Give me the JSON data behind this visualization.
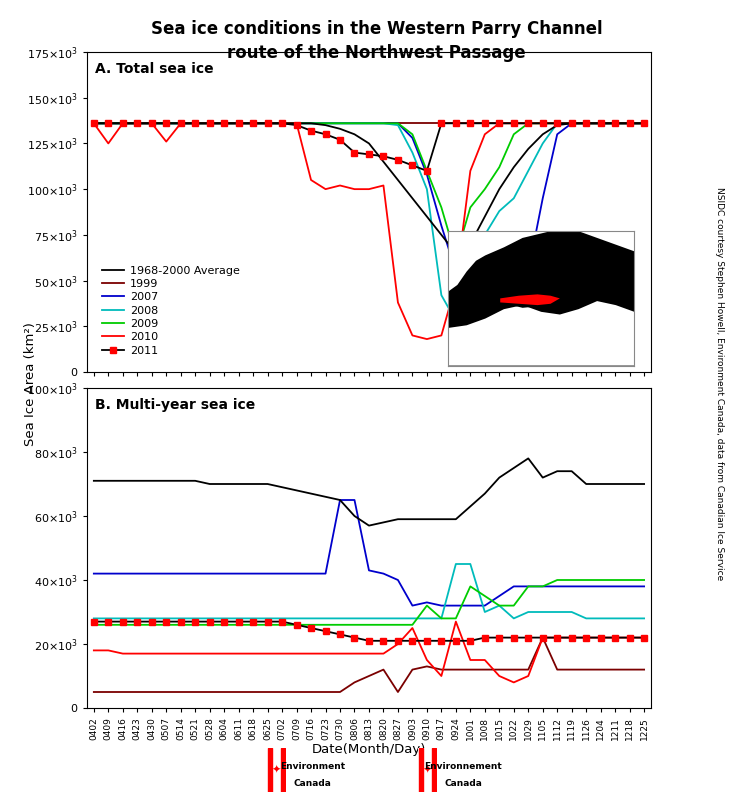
{
  "title": "Sea ice conditions in the Western Parry Channel\nroute of the Northwest Passage",
  "ylabel": "Sea Ice Area (km²)",
  "xlabel": "Date(Month/Day)",
  "subplot_a_label": "A. Total sea ice",
  "subplot_b_label": "B. Multi-year sea ice",
  "x_ticks": [
    "0402",
    "0409",
    "0416",
    "0423",
    "0430",
    "0507",
    "0514",
    "0521",
    "0528",
    "0604",
    "0611",
    "0618",
    "0625",
    "0702",
    "0709",
    "0716",
    "0723",
    "0730",
    "0806",
    "0813",
    "0820",
    "0827",
    "0903",
    "0910",
    "0917",
    "0924",
    "1001",
    "1008",
    "1015",
    "1022",
    "1029",
    "1105",
    "1112",
    "1119",
    "1126",
    "1204",
    "1211",
    "1218",
    "1225"
  ],
  "colors": {
    "avg": "#000000",
    "y1999": "#7B0000",
    "y2007": "#0000CC",
    "y2008": "#00BBBB",
    "y2009": "#00CC00",
    "y2010": "#FF0000",
    "y2011_line": "#000000",
    "y2011_marker": "#FF0000"
  },
  "legend_labels": [
    "1968-2000 Average",
    "1999",
    "2007",
    "2008",
    "2009",
    "2010",
    "2011"
  ],
  "total_ice": {
    "avg": [
      136000,
      136000,
      136000,
      136000,
      136000,
      136000,
      136000,
      136000,
      136000,
      136000,
      136000,
      136000,
      136000,
      136000,
      136000,
      136000,
      135000,
      133000,
      130000,
      125000,
      115000,
      105000,
      95000,
      85000,
      75000,
      65000,
      70000,
      85000,
      100000,
      112000,
      122000,
      130000,
      135000,
      136000,
      136000,
      136000,
      136000,
      136000,
      136000
    ],
    "y1999": [
      136000,
      136000,
      136000,
      136000,
      136000,
      136000,
      136000,
      136000,
      136000,
      136000,
      136000,
      136000,
      136000,
      136000,
      136000,
      136000,
      136000,
      136000,
      136000,
      136000,
      136000,
      136000,
      136000,
      136000,
      136000,
      136000,
      136000,
      136000,
      136000,
      136000,
      136000,
      136000,
      136000,
      136000,
      136000,
      136000,
      136000,
      136000,
      136000
    ],
    "y2007": [
      136000,
      136000,
      136000,
      136000,
      136000,
      136000,
      136000,
      136000,
      136000,
      136000,
      136000,
      136000,
      136000,
      136000,
      136000,
      136000,
      136000,
      136000,
      136000,
      136000,
      136000,
      136000,
      128000,
      108000,
      80000,
      55000,
      38000,
      36000,
      35000,
      36000,
      55000,
      95000,
      130000,
      136000,
      136000,
      136000,
      136000,
      136000,
      136000
    ],
    "y2008": [
      136000,
      136000,
      136000,
      136000,
      136000,
      136000,
      136000,
      136000,
      136000,
      136000,
      136000,
      136000,
      136000,
      136000,
      136000,
      136000,
      136000,
      136000,
      136000,
      136000,
      136000,
      135000,
      120000,
      100000,
      42000,
      28000,
      60000,
      75000,
      88000,
      95000,
      110000,
      125000,
      136000,
      136000,
      136000,
      136000,
      136000,
      136000,
      136000
    ],
    "y2009": [
      136000,
      136000,
      136000,
      136000,
      136000,
      136000,
      136000,
      136000,
      136000,
      136000,
      136000,
      136000,
      136000,
      136000,
      136000,
      136000,
      136000,
      136000,
      136000,
      136000,
      136000,
      136000,
      130000,
      110000,
      90000,
      63000,
      90000,
      100000,
      112000,
      130000,
      136000,
      136000,
      136000,
      136000,
      136000,
      136000,
      136000,
      136000,
      136000
    ],
    "y2010": [
      136000,
      125000,
      136000,
      136000,
      136000,
      126000,
      136000,
      136000,
      136000,
      136000,
      136000,
      136000,
      136000,
      136000,
      136000,
      105000,
      100000,
      102000,
      100000,
      100000,
      102000,
      38000,
      20000,
      18000,
      20000,
      48000,
      110000,
      130000,
      136000,
      136000,
      136000,
      136000,
      136000,
      136000,
      136000,
      136000,
      136000,
      136000,
      136000
    ],
    "y2011": [
      136000,
      136000,
      136000,
      136000,
      136000,
      136000,
      136000,
      136000,
      136000,
      136000,
      136000,
      136000,
      136000,
      136000,
      135000,
      132000,
      130000,
      127000,
      120000,
      119000,
      118000,
      116000,
      113000,
      110000,
      136000,
      136000,
      136000,
      136000,
      136000,
      136000,
      136000,
      136000,
      136000,
      136000,
      136000,
      136000,
      136000,
      136000,
      136000
    ]
  },
  "myi_ice": {
    "avg": [
      71000,
      71000,
      71000,
      71000,
      71000,
      71000,
      71000,
      71000,
      70000,
      70000,
      70000,
      70000,
      70000,
      69000,
      68000,
      67000,
      66000,
      65000,
      60000,
      57000,
      58000,
      59000,
      59000,
      59000,
      59000,
      59000,
      63000,
      67000,
      72000,
      75000,
      78000,
      72000,
      74000,
      74000,
      70000,
      70000,
      70000,
      70000,
      70000
    ],
    "y1999": [
      5000,
      5000,
      5000,
      5000,
      5000,
      5000,
      5000,
      5000,
      5000,
      5000,
      5000,
      5000,
      5000,
      5000,
      5000,
      5000,
      5000,
      5000,
      8000,
      10000,
      12000,
      5000,
      12000,
      13000,
      12000,
      12000,
      12000,
      12000,
      12000,
      12000,
      12000,
      22000,
      12000,
      12000,
      12000,
      12000,
      12000,
      12000,
      12000
    ],
    "y2007": [
      42000,
      42000,
      42000,
      42000,
      42000,
      42000,
      42000,
      42000,
      42000,
      42000,
      42000,
      42000,
      42000,
      42000,
      42000,
      42000,
      42000,
      65000,
      65000,
      43000,
      42000,
      40000,
      32000,
      33000,
      32000,
      32000,
      32000,
      32000,
      35000,
      38000,
      38000,
      38000,
      38000,
      38000,
      38000,
      38000,
      38000,
      38000,
      38000
    ],
    "y2008": [
      28000,
      28000,
      28000,
      28000,
      28000,
      28000,
      28000,
      28000,
      28000,
      28000,
      28000,
      28000,
      28000,
      28000,
      28000,
      28000,
      28000,
      28000,
      28000,
      28000,
      28000,
      28000,
      28000,
      28000,
      28000,
      45000,
      45000,
      30000,
      32000,
      28000,
      30000,
      30000,
      30000,
      30000,
      28000,
      28000,
      28000,
      28000,
      28000
    ],
    "y2009": [
      26000,
      26000,
      26000,
      26000,
      26000,
      26000,
      26000,
      26000,
      26000,
      26000,
      26000,
      26000,
      26000,
      26000,
      26000,
      26000,
      26000,
      26000,
      26000,
      26000,
      26000,
      26000,
      26000,
      32000,
      28000,
      28000,
      38000,
      35000,
      32000,
      32000,
      38000,
      38000,
      40000,
      40000,
      40000,
      40000,
      40000,
      40000,
      40000
    ],
    "y2010": [
      18000,
      18000,
      17000,
      17000,
      17000,
      17000,
      17000,
      17000,
      17000,
      17000,
      17000,
      17000,
      17000,
      17000,
      17000,
      17000,
      17000,
      17000,
      17000,
      17000,
      17000,
      20000,
      25000,
      15000,
      10000,
      27000,
      15000,
      15000,
      10000,
      8000,
      10000,
      22000,
      22000,
      22000,
      22000,
      22000,
      22000,
      22000,
      22000
    ],
    "y2011": [
      27000,
      27000,
      27000,
      27000,
      27000,
      27000,
      27000,
      27000,
      27000,
      27000,
      27000,
      27000,
      27000,
      27000,
      26000,
      25000,
      24000,
      23000,
      22000,
      21000,
      21000,
      21000,
      21000,
      21000,
      21000,
      21000,
      21000,
      22000,
      22000,
      22000,
      22000,
      22000,
      22000,
      22000,
      22000,
      22000,
      22000,
      22000,
      22000
    ]
  }
}
